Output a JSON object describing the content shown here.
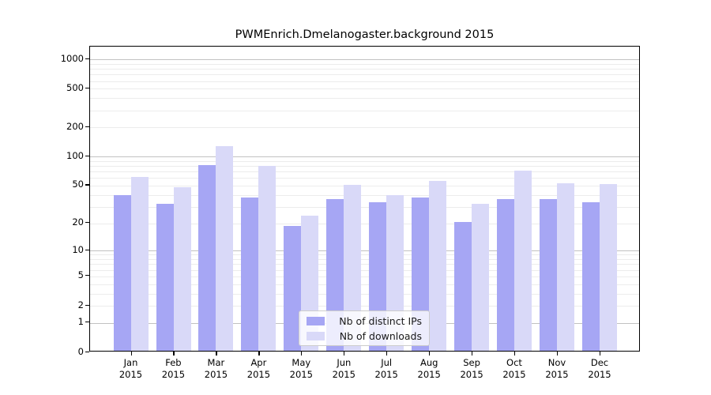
{
  "title": "PWMEnrich.Dmelanogaster.background 2015",
  "chart_data": {
    "type": "bar",
    "title": "PWMEnrich.Dmelanogaster.background 2015",
    "categories": [
      "Jan",
      "Feb",
      "Mar",
      "Apr",
      "May",
      "Jun",
      "Jul",
      "Aug",
      "Sep",
      "Oct",
      "Nov",
      "Dec"
    ],
    "category_sublabel": "2015",
    "series": [
      {
        "name": "Nb of distinct IPs",
        "color": "#a6a6f4",
        "values": [
          38,
          31,
          79,
          36,
          18,
          35,
          32,
          36,
          20,
          35,
          35,
          32
        ]
      },
      {
        "name": "Nb of downloads",
        "color": "#d9d9f8",
        "values": [
          59,
          46,
          124,
          77,
          23,
          49,
          38,
          54,
          31,
          69,
          51,
          50
        ]
      }
    ],
    "yticks": [
      0,
      1,
      2,
      5,
      10,
      20,
      50,
      100,
      200,
      500,
      1000
    ],
    "xlabel": "",
    "ylabel": "",
    "scale": "log10(value+1)",
    "ylim": [
      0,
      1350
    ],
    "grid": "horizontal, major at powers of 10, minor at 2-9 per decade",
    "legend_position": "lower center inside plot"
  },
  "legend": {
    "items": [
      {
        "label": "Nb of distinct IPs"
      },
      {
        "label": "Nb of downloads"
      }
    ]
  },
  "colors": {
    "distinct_ips_bar": "#a6a6f4",
    "downloads_bar": "#d9d9f8",
    "major_gridline": "#c2c2c2",
    "minor_gridline": "#ececec",
    "axis": "#000000"
  }
}
